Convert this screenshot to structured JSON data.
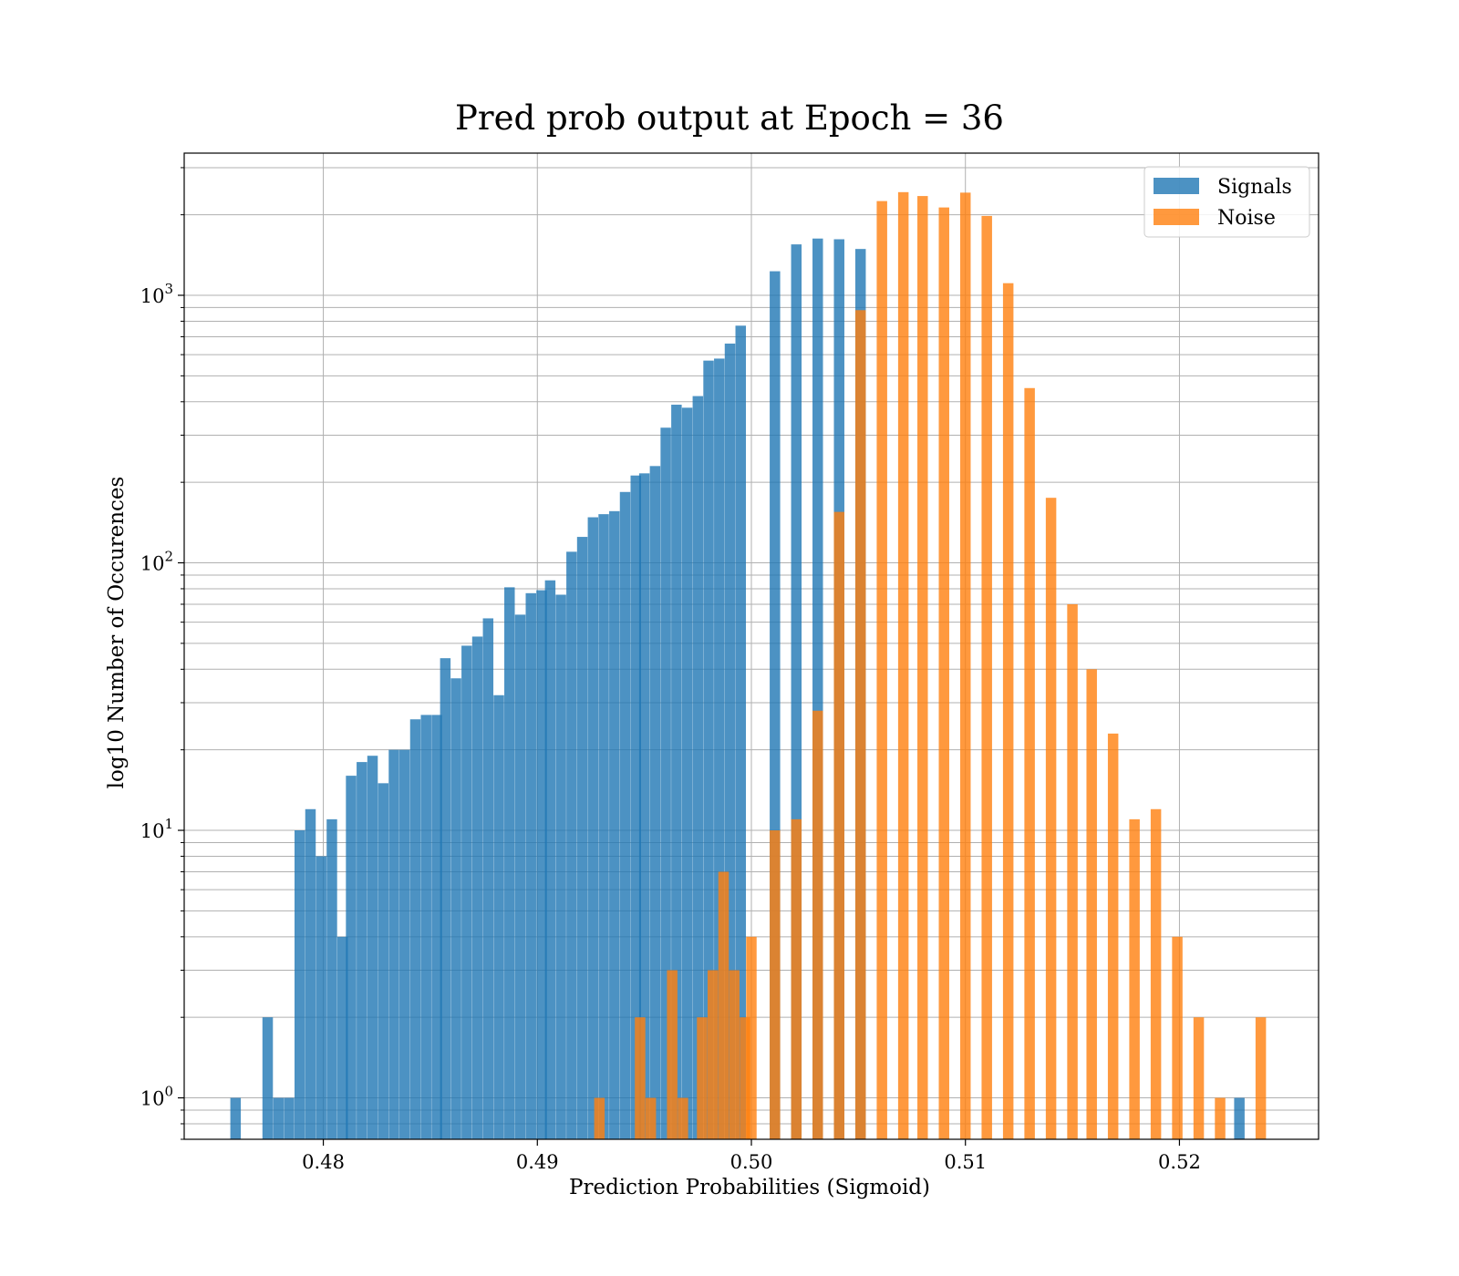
{
  "chart_data": {
    "type": "bar",
    "title": "Pred prob output at Epoch = 36",
    "xlabel": "Prediction Probabilities (Sigmoid)",
    "ylabel": "log10 Number of Occurences",
    "xlim": [
      0.4735,
      0.5265
    ],
    "ylim": [
      0.7,
      3400
    ],
    "yscale": "log",
    "grid": true,
    "legend_position": "top-right",
    "bin_width": 0.0004892,
    "x_ticks": [
      {
        "value": 0.48,
        "label": "0.48"
      },
      {
        "value": 0.49,
        "label": "0.49"
      },
      {
        "value": 0.5,
        "label": "0.50"
      },
      {
        "value": 0.51,
        "label": "0.51"
      },
      {
        "value": 0.52,
        "label": "0.52"
      }
    ],
    "y_ticks": [
      {
        "value": 1,
        "base": "10",
        "exp": "0"
      },
      {
        "value": 10,
        "base": "10",
        "exp": "1"
      },
      {
        "value": 100,
        "base": "10",
        "exp": "2"
      },
      {
        "value": 1000,
        "base": "10",
        "exp": "3"
      }
    ],
    "series": [
      {
        "name": "Signals",
        "color": "#1f77b4",
        "x": [
          0.4759,
          0.4774,
          0.4779,
          0.4784,
          0.4789,
          0.4794,
          0.4799,
          0.4804,
          0.4809,
          0.4813,
          0.4818,
          0.4823,
          0.4828,
          0.4833,
          0.4838,
          0.4843,
          0.4848,
          0.4853,
          0.4857,
          0.4862,
          0.4867,
          0.4872,
          0.4877,
          0.4882,
          0.4887,
          0.4892,
          0.4897,
          0.4902,
          0.4906,
          0.4911,
          0.4916,
          0.4921,
          0.4926,
          0.4931,
          0.4936,
          0.4941,
          0.4946,
          0.495,
          0.4955,
          0.496,
          0.4965,
          0.497,
          0.4975,
          0.498,
          0.4985,
          0.499,
          0.4995,
          0.5011,
          0.5021,
          0.5031,
          0.5041,
          0.5051,
          0.5228
        ],
        "values": [
          1,
          2,
          1,
          1,
          10,
          12,
          8,
          11,
          4,
          16,
          18,
          19,
          15,
          20,
          20,
          26,
          27,
          27,
          44,
          37,
          49,
          53,
          62,
          32,
          81,
          64,
          77,
          79,
          86,
          76,
          110,
          125,
          148,
          152,
          156,
          184,
          212,
          216,
          230,
          320,
          390,
          380,
          420,
          570,
          580,
          660,
          770,
          1230,
          1550,
          1630,
          1620,
          1490,
          1
        ]
      },
      {
        "name": "Noise",
        "color": "#ff7f0e",
        "x": [
          0.4929,
          0.4948,
          0.4953,
          0.4963,
          0.4968,
          0.4977,
          0.4982,
          0.4987,
          0.4992,
          0.4997,
          0.5,
          0.5011,
          0.5021,
          0.5031,
          0.5041,
          0.5051,
          0.5061,
          0.5071,
          0.508,
          0.509,
          0.51,
          0.511,
          0.512,
          0.513,
          0.514,
          0.515,
          0.5159,
          0.5169,
          0.5179,
          0.5189,
          0.5199,
          0.5209,
          0.5219,
          0.5238
        ],
        "values": [
          1,
          2,
          1,
          3,
          1,
          2,
          3,
          7,
          3,
          2,
          4,
          10,
          11,
          28,
          155,
          880,
          2250,
          2430,
          2350,
          2130,
          2420,
          1980,
          1110,
          450,
          175,
          70,
          40,
          23,
          11,
          12,
          4,
          2,
          1,
          2
        ]
      }
    ]
  }
}
